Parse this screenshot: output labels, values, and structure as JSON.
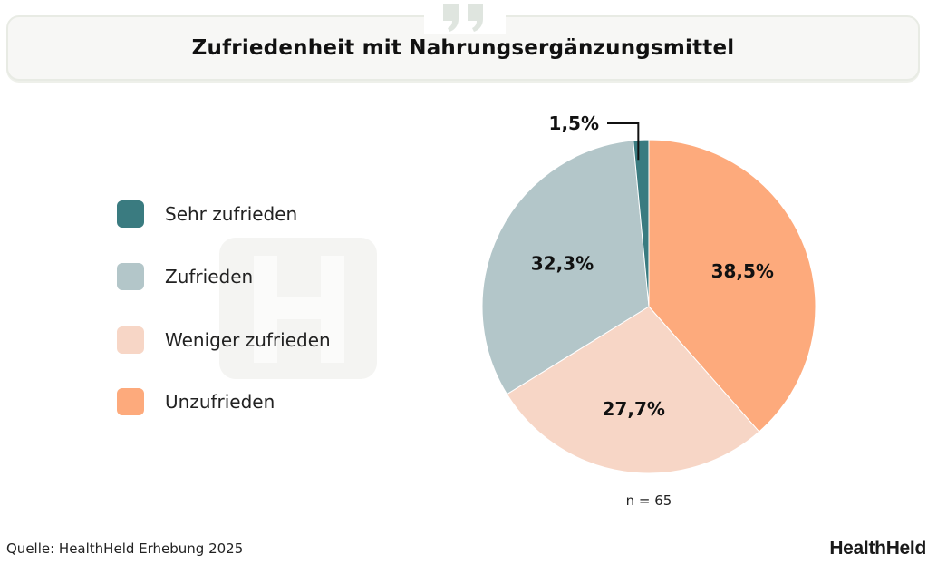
{
  "chart_data": {
    "type": "pie",
    "title": "Zufriedenheit mit Nahrungsergänzungsmittel",
    "categories": [
      "Sehr zufrieden",
      "Zufrieden",
      "Weniger zufrieden",
      "Unzufrieden"
    ],
    "values": [
      1.5,
      32.3,
      27.7,
      38.5
    ],
    "value_labels": [
      "1,5%",
      "32,3%",
      "27,7%",
      "38,5%"
    ],
    "colors": [
      "#3a7b80",
      "#b3c6c9",
      "#f7d6c6",
      "#fdaa7c"
    ],
    "legend_position": "left",
    "note": "n = 65"
  },
  "header": {
    "icon": "quote-icon"
  },
  "footer": {
    "source": "Quelle: HealthHeld Erhebung 2025",
    "brand": "HealthHeld"
  }
}
